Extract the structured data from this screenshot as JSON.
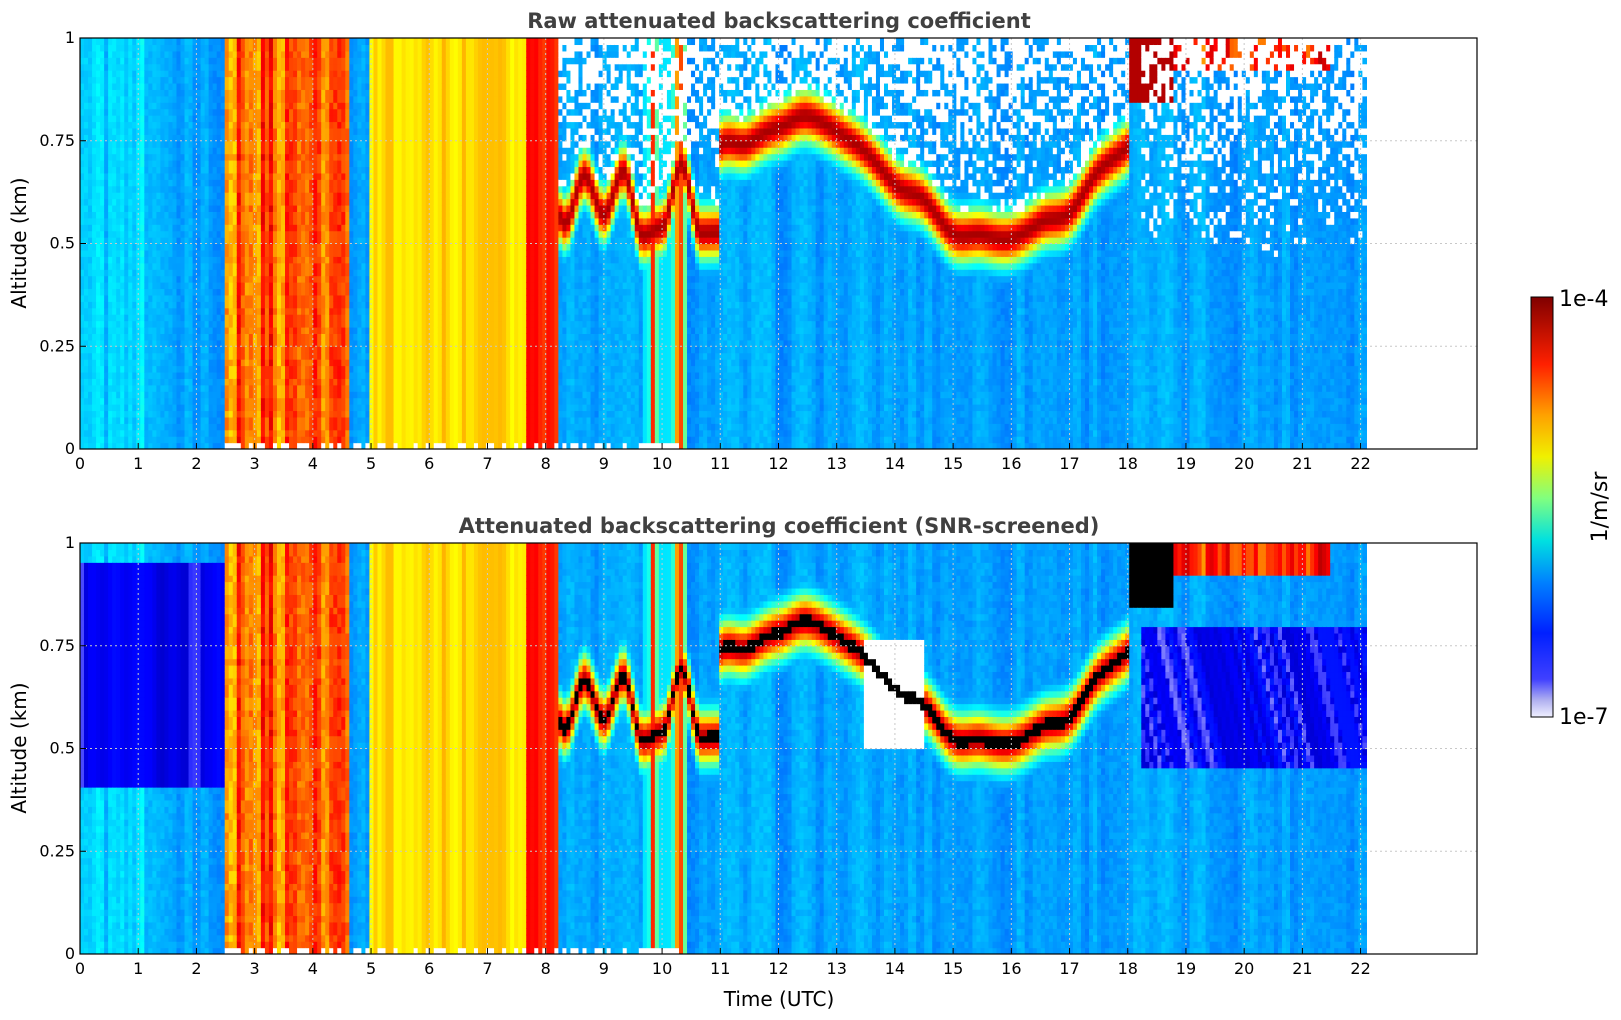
{
  "chart_data": [
    {
      "type": "heatmap",
      "title": "Raw attenuated backscattering coefficient",
      "xlabel": "",
      "ylabel": "Altitude (km)",
      "xlim": [
        0,
        24
      ],
      "ylim": [
        0,
        1
      ],
      "data_end_hour": 22.1,
      "x_ticks": [
        "0",
        "1",
        "2",
        "3",
        "4",
        "5",
        "6",
        "7",
        "8",
        "9",
        "10",
        "11",
        "12",
        "13",
        "14",
        "15",
        "16",
        "17",
        "18",
        "19",
        "20",
        "21",
        "22"
      ],
      "y_ticks": [
        "0",
        "0.25",
        "0.5",
        "0.75",
        "1"
      ],
      "grid": true,
      "screened": false
    },
    {
      "type": "heatmap",
      "title": "Attenuated backscattering coefficient (SNR-screened)",
      "xlabel": "Time (UTC)",
      "ylabel": "Altitude (km)",
      "xlim": [
        0,
        24
      ],
      "ylim": [
        0,
        1
      ],
      "data_end_hour": 22.1,
      "x_ticks": [
        "0",
        "1",
        "2",
        "3",
        "4",
        "5",
        "6",
        "7",
        "8",
        "9",
        "10",
        "11",
        "12",
        "13",
        "14",
        "15",
        "16",
        "17",
        "18",
        "19",
        "20",
        "21",
        "22"
      ],
      "y_ticks": [
        "0",
        "0.25",
        "0.5",
        "0.75",
        "1"
      ],
      "grid": true,
      "screened": true
    }
  ],
  "colorbar": {
    "max_label": "1e-4",
    "min_label": "1e-7",
    "unit_label": "1/m/sr",
    "colormap": "jet",
    "scale": "log"
  },
  "colors": {
    "title": "#404040",
    "screened_saturation": "#000000"
  }
}
